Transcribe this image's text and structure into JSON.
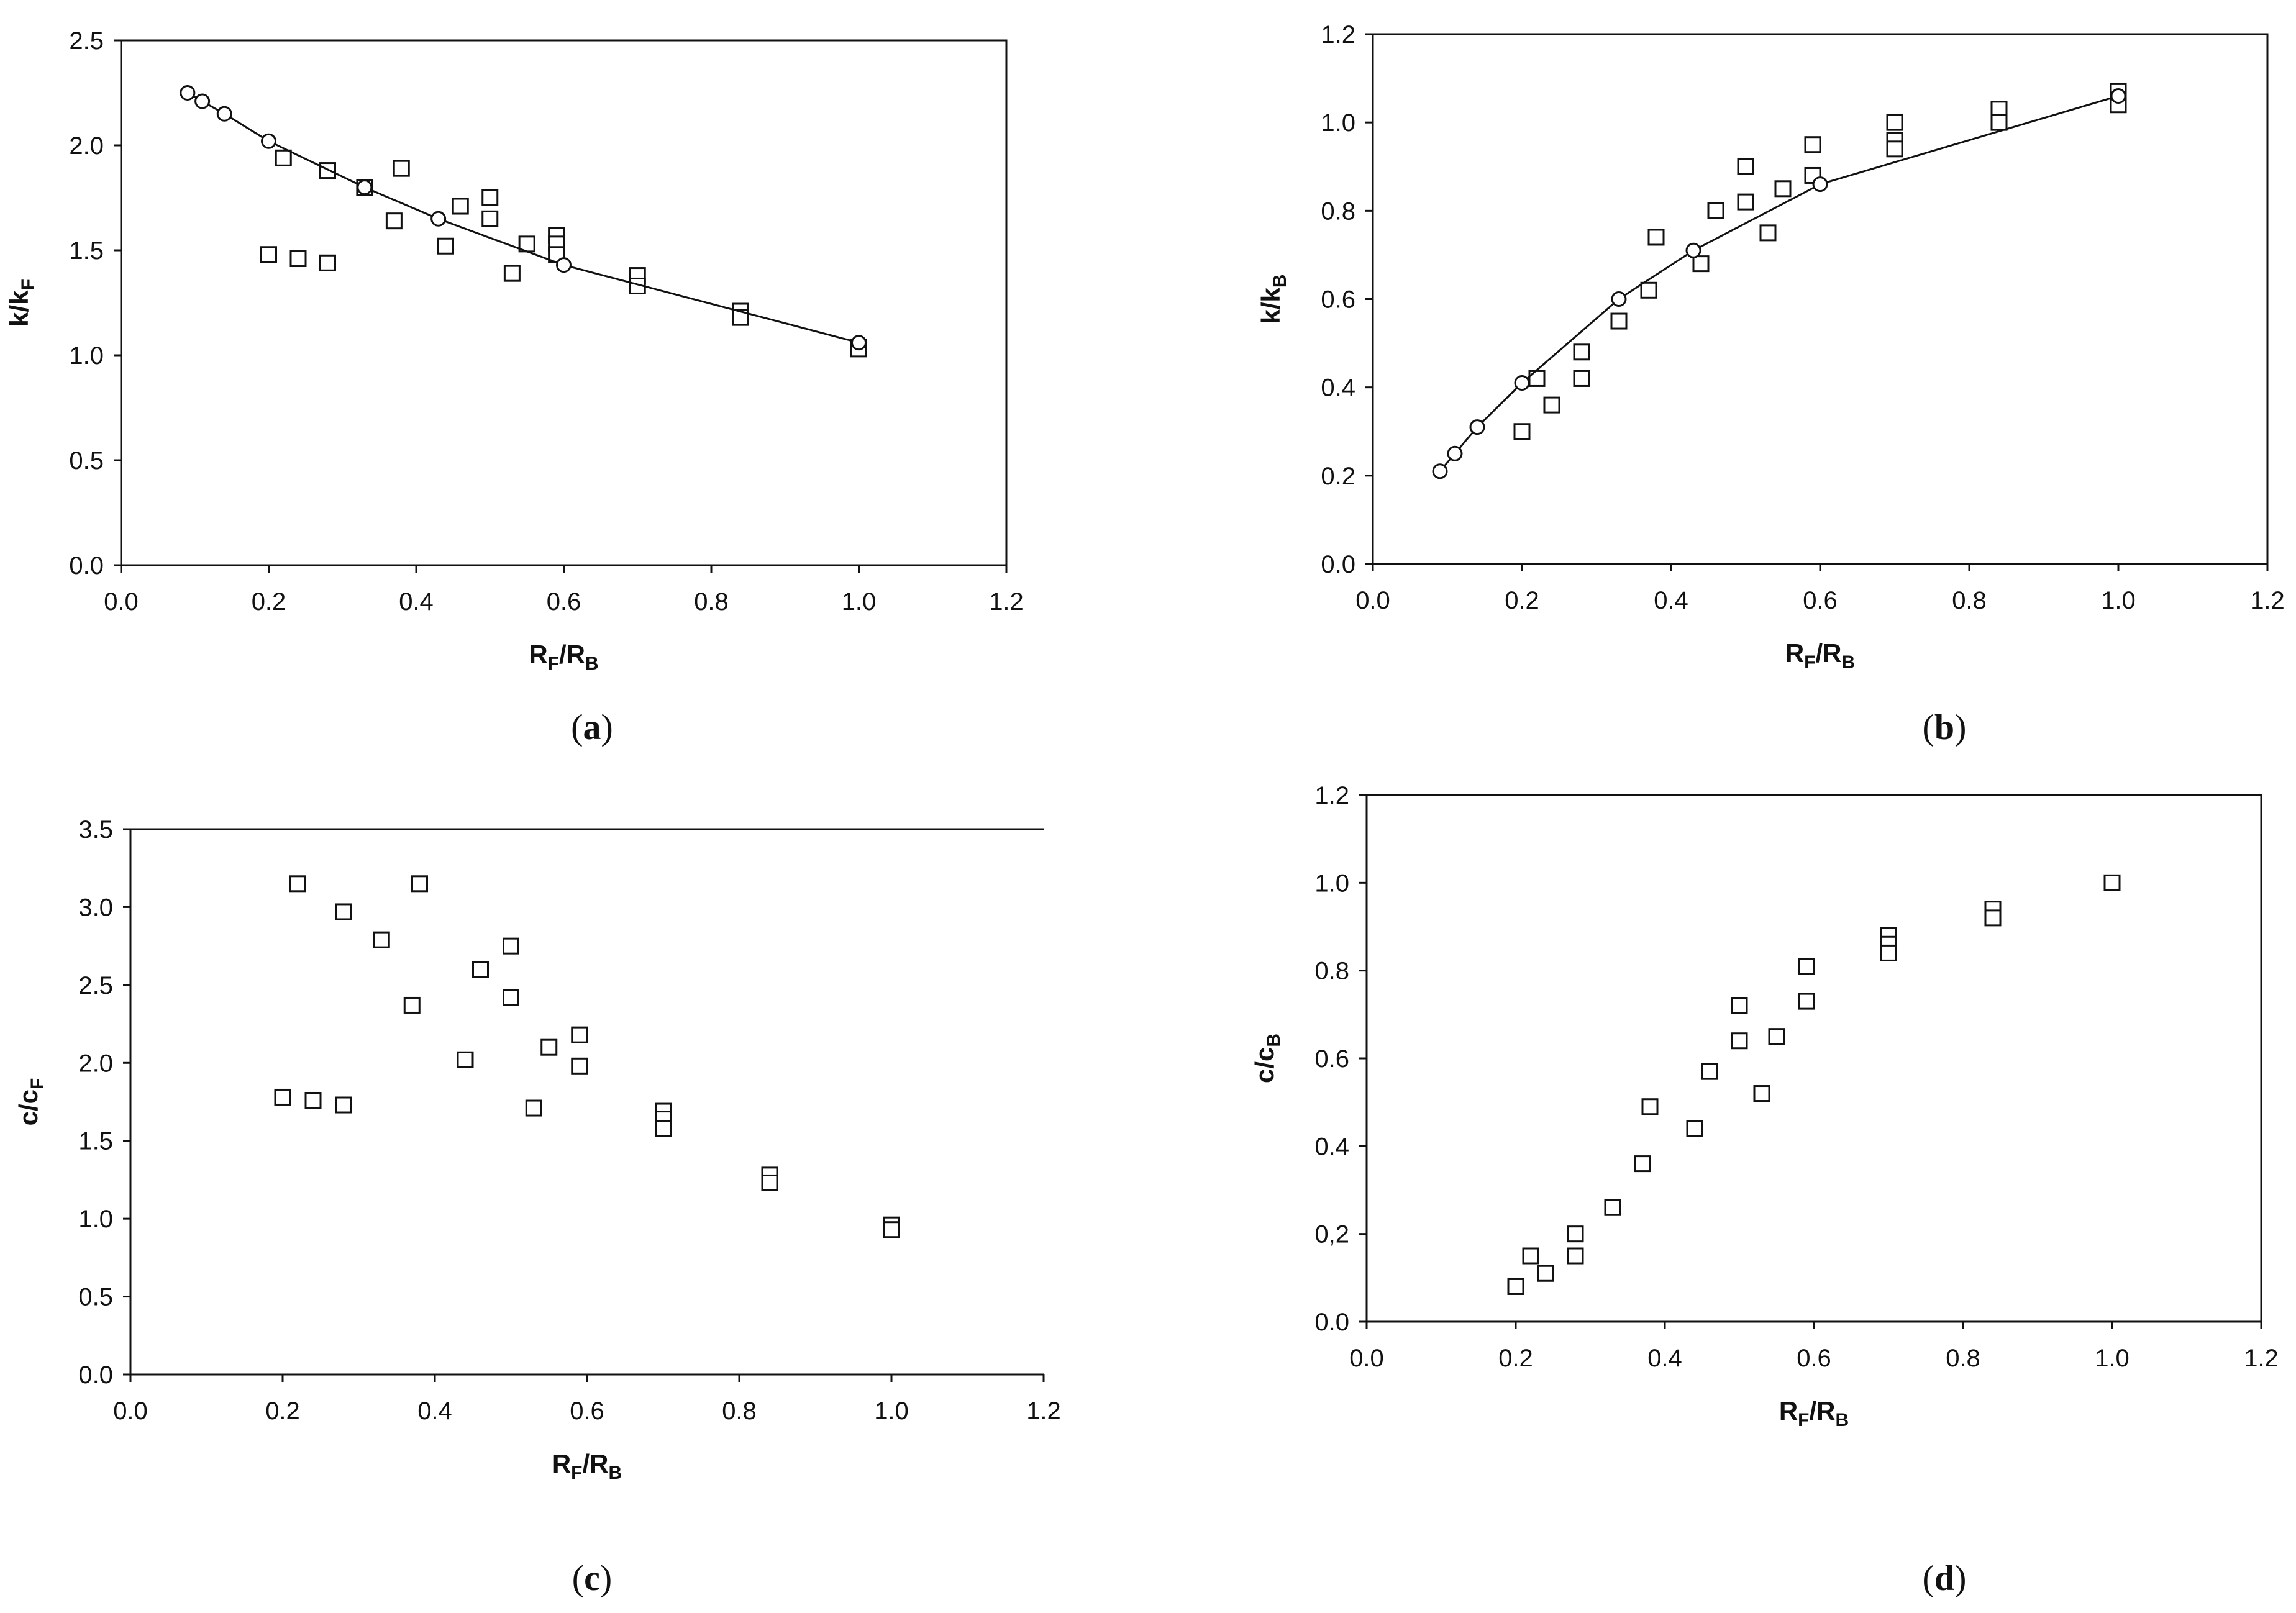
{
  "chart_data": [
    {
      "panel": "a",
      "type": "scatter",
      "caption": "a",
      "xlabel_main": "R",
      "xlabel_sub1": "F",
      "xlabel_mid": "/R",
      "xlabel_sub2": "B",
      "ylabel_main": "k/k",
      "ylabel_sub": "F",
      "xlim": [
        0,
        1.2
      ],
      "ylim": [
        0,
        2.5
      ],
      "xticks": [
        "0.0",
        "0.2",
        "0.4",
        "0.6",
        "0.8",
        "1.0",
        "1.2"
      ],
      "yticks": [
        "0.0",
        "0.5",
        "1.0",
        "1.5",
        "2.0",
        "2.5"
      ],
      "frame": "box",
      "series": [
        {
          "marker": "square",
          "points": [
            [
              0.2,
              1.48
            ],
            [
              0.24,
              1.46
            ],
            [
              0.28,
              1.44
            ],
            [
              0.22,
              1.94
            ],
            [
              0.28,
              1.88
            ],
            [
              0.33,
              1.8
            ],
            [
              0.37,
              1.64
            ],
            [
              0.38,
              1.89
            ],
            [
              0.44,
              1.52
            ],
            [
              0.46,
              1.71
            ],
            [
              0.5,
              1.75
            ],
            [
              0.5,
              1.65
            ],
            [
              0.53,
              1.39
            ],
            [
              0.55,
              1.53
            ],
            [
              0.59,
              1.57
            ],
            [
              0.59,
              1.53
            ],
            [
              0.59,
              1.48
            ],
            [
              0.7,
              1.38
            ],
            [
              0.7,
              1.33
            ],
            [
              0.84,
              1.21
            ],
            [
              0.84,
              1.18
            ],
            [
              1.0,
              1.04
            ],
            [
              1.0,
              1.03
            ]
          ]
        },
        {
          "marker": "circle-line",
          "points": [
            [
              0.09,
              2.25
            ],
            [
              0.11,
              2.21
            ],
            [
              0.14,
              2.15
            ],
            [
              0.2,
              2.02
            ],
            [
              0.33,
              1.8
            ],
            [
              0.43,
              1.65
            ],
            [
              0.6,
              1.43
            ],
            [
              1.0,
              1.06
            ]
          ]
        }
      ]
    },
    {
      "panel": "b",
      "type": "scatter",
      "caption": "b",
      "xlabel_main": "R",
      "xlabel_sub1": "F",
      "xlabel_mid": "/R",
      "xlabel_sub2": "B",
      "ylabel_main": "k/k",
      "ylabel_sub": "B",
      "xlim": [
        0,
        1.2
      ],
      "ylim": [
        0,
        1.2
      ],
      "xticks": [
        "0.0",
        "0.2",
        "0.4",
        "0.6",
        "0.8",
        "1.0",
        "1.2"
      ],
      "yticks": [
        "0.0",
        "0.2",
        "0.4",
        "0.6",
        "0.8",
        "1.0",
        "1.2"
      ],
      "frame": "box",
      "series": [
        {
          "marker": "square",
          "points": [
            [
              0.2,
              0.3
            ],
            [
              0.22,
              0.42
            ],
            [
              0.24,
              0.36
            ],
            [
              0.28,
              0.48
            ],
            [
              0.28,
              0.42
            ],
            [
              0.33,
              0.55
            ],
            [
              0.37,
              0.62
            ],
            [
              0.38,
              0.74
            ],
            [
              0.44,
              0.68
            ],
            [
              0.46,
              0.8
            ],
            [
              0.5,
              0.9
            ],
            [
              0.5,
              0.82
            ],
            [
              0.53,
              0.75
            ],
            [
              0.55,
              0.85
            ],
            [
              0.59,
              0.95
            ],
            [
              0.59,
              0.88
            ],
            [
              0.7,
              1.0
            ],
            [
              0.7,
              0.96
            ],
            [
              0.7,
              0.94
            ],
            [
              0.84,
              1.03
            ],
            [
              0.84,
              1.0
            ],
            [
              1.0,
              1.07
            ],
            [
              1.0,
              1.04
            ]
          ]
        },
        {
          "marker": "circle-line",
          "points": [
            [
              0.09,
              0.21
            ],
            [
              0.11,
              0.25
            ],
            [
              0.14,
              0.31
            ],
            [
              0.2,
              0.41
            ],
            [
              0.33,
              0.6
            ],
            [
              0.43,
              0.71
            ],
            [
              0.6,
              0.86
            ],
            [
              1.0,
              1.06
            ]
          ]
        }
      ]
    },
    {
      "panel": "c",
      "type": "scatter",
      "caption": "c",
      "xlabel_main": "R",
      "xlabel_sub1": "F",
      "xlabel_mid": "/R",
      "xlabel_sub2": "B",
      "ylabel_main": "c/c",
      "ylabel_sub": "F",
      "xlim": [
        0,
        1.2
      ],
      "ylim": [
        0,
        3.5
      ],
      "xticks": [
        "0.0",
        "0.2",
        "0.4",
        "0.6",
        "0.8",
        "1.0",
        "1.2"
      ],
      "yticks": [
        "0.0",
        "0.5",
        "1.0",
        "1.5",
        "2.0",
        "2.5",
        "3.0",
        "3.5"
      ],
      "frame": "open-right",
      "series": [
        {
          "marker": "square",
          "points": [
            [
              0.2,
              1.78
            ],
            [
              0.22,
              3.15
            ],
            [
              0.24,
              1.76
            ],
            [
              0.28,
              2.97
            ],
            [
              0.28,
              1.73
            ],
            [
              0.33,
              2.79
            ],
            [
              0.37,
              2.37
            ],
            [
              0.38,
              3.15
            ],
            [
              0.44,
              2.02
            ],
            [
              0.46,
              2.6
            ],
            [
              0.5,
              2.75
            ],
            [
              0.5,
              2.42
            ],
            [
              0.53,
              1.71
            ],
            [
              0.55,
              2.1
            ],
            [
              0.59,
              2.18
            ],
            [
              0.59,
              1.98
            ],
            [
              0.7,
              1.69
            ],
            [
              0.7,
              1.64
            ],
            [
              0.7,
              1.58
            ],
            [
              0.84,
              1.28
            ],
            [
              0.84,
              1.23
            ],
            [
              1.0,
              0.96
            ],
            [
              1.0,
              0.93
            ]
          ]
        }
      ]
    },
    {
      "panel": "d",
      "type": "scatter",
      "caption": "d",
      "xlabel_main": "R",
      "xlabel_sub1": "F",
      "xlabel_mid": "/R",
      "xlabel_sub2": "B",
      "ylabel_main": "c/c",
      "ylabel_sub": "B",
      "xlim": [
        0,
        1.2
      ],
      "ylim": [
        0,
        1.2
      ],
      "xticks": [
        "0.0",
        "0.2",
        "0.4",
        "0.6",
        "0.8",
        "1.0",
        "1.2"
      ],
      "yticks": [
        "0.0",
        "0,2",
        "0.4",
        "0.6",
        "0.8",
        "1.0",
        "1.2"
      ],
      "frame": "box",
      "series": [
        {
          "marker": "square",
          "points": [
            [
              0.2,
              0.08
            ],
            [
              0.22,
              0.15
            ],
            [
              0.24,
              0.11
            ],
            [
              0.28,
              0.2
            ],
            [
              0.28,
              0.15
            ],
            [
              0.33,
              0.26
            ],
            [
              0.37,
              0.36
            ],
            [
              0.38,
              0.49
            ],
            [
              0.44,
              0.44
            ],
            [
              0.46,
              0.57
            ],
            [
              0.5,
              0.72
            ],
            [
              0.5,
              0.64
            ],
            [
              0.53,
              0.52
            ],
            [
              0.55,
              0.65
            ],
            [
              0.59,
              0.81
            ],
            [
              0.59,
              0.73
            ],
            [
              0.7,
              0.88
            ],
            [
              0.7,
              0.86
            ],
            [
              0.7,
              0.84
            ],
            [
              0.84,
              0.94
            ],
            [
              0.84,
              0.92
            ],
            [
              1.0,
              1.0
            ]
          ]
        }
      ]
    }
  ]
}
